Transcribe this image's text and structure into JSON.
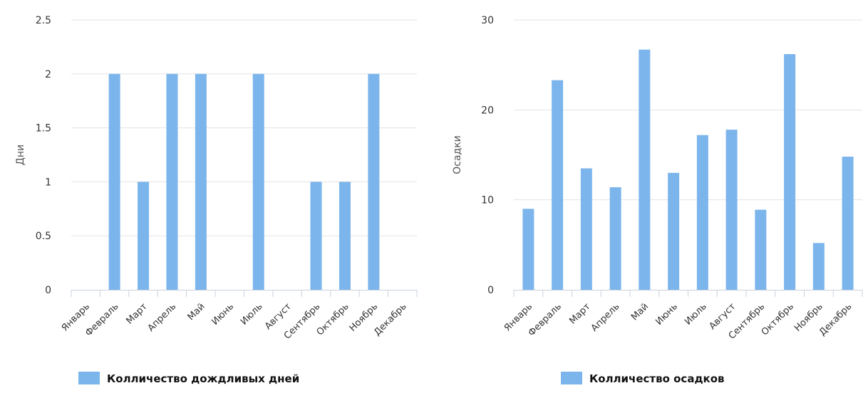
{
  "chart_data": [
    {
      "type": "bar",
      "categories": [
        "Январь",
        "Февраль",
        "Март",
        "Апрель",
        "Май",
        "Июнь",
        "Июль",
        "Август",
        "Сентябрь",
        "Октябрь",
        "Ноябрь",
        "Декабрь"
      ],
      "series": [
        {
          "name": "Колличество дождливых дней",
          "values": [
            0,
            2,
            1,
            2,
            2,
            0,
            2,
            0,
            1,
            1,
            2,
            0
          ],
          "color": "#7cb5ec"
        }
      ],
      "ylabel": "Дни",
      "ylim": [
        0,
        2.5
      ],
      "yticks": [
        0,
        0.5,
        1,
        1.5,
        2,
        2.5
      ],
      "ytick_labels": [
        "0",
        "0.5",
        "1",
        "1.5",
        "2",
        "2.5"
      ],
      "grid": true,
      "legend": "bottom"
    },
    {
      "type": "bar",
      "categories": [
        "Январь",
        "Февраль",
        "Март",
        "Апрель",
        "Май",
        "Июнь",
        "Июль",
        "Август",
        "Сентябрь",
        "Октябрь",
        "Ноябрь",
        "Декабрь"
      ],
      "series": [
        {
          "name": "Колличество осадков",
          "values": [
            9,
            23.3,
            13.5,
            11.4,
            26.7,
            13,
            17.2,
            17.8,
            8.9,
            26.2,
            5.2,
            14.8
          ],
          "color": "#7cb5ec"
        }
      ],
      "ylabel": "Осадки",
      "ylim": [
        0,
        30
      ],
      "yticks": [
        0,
        10,
        20,
        30
      ],
      "ytick_labels": [
        "0",
        "10",
        "20",
        "30"
      ],
      "grid": true,
      "legend": "bottom"
    }
  ]
}
